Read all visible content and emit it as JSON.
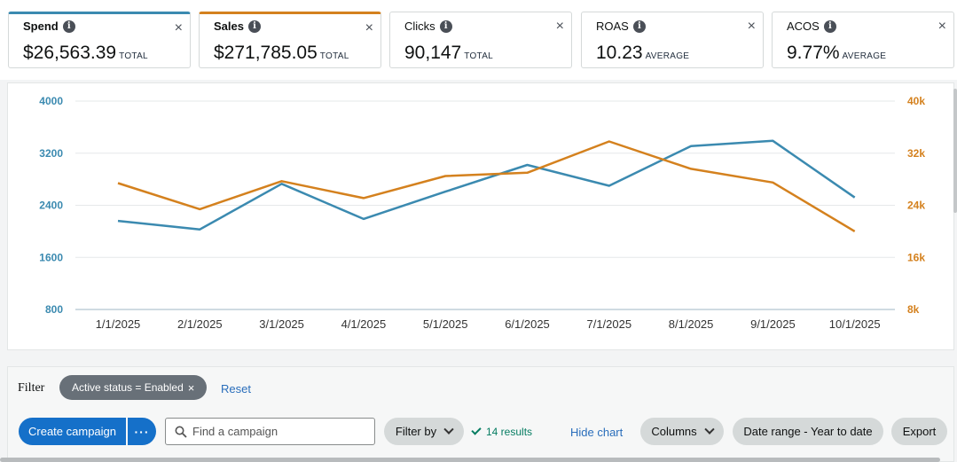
{
  "metrics": [
    {
      "label": "Spend",
      "value": "$26,563.39",
      "suffix": "TOTAL",
      "selected": true
    },
    {
      "label": "Sales",
      "value": "$271,785.05",
      "suffix": "TOTAL",
      "selected": true
    },
    {
      "label": "Clicks",
      "value": "90,147",
      "suffix": "TOTAL",
      "selected": false
    },
    {
      "label": "ROAS",
      "value": "10.23",
      "suffix": "AVERAGE",
      "selected": false
    },
    {
      "label": "ACOS",
      "value": "9.77%",
      "suffix": "AVERAGE",
      "selected": false
    }
  ],
  "icons": {
    "info": "i",
    "close": "×"
  },
  "colors": {
    "spend": "#3b8ab0",
    "sales": "#d4811e",
    "primary": "#1570c9"
  },
  "chart_data": {
    "type": "line",
    "x": [
      "1/1/2025",
      "2/1/2025",
      "3/1/2025",
      "4/1/2025",
      "5/1/2025",
      "6/1/2025",
      "7/1/2025",
      "8/1/2025",
      "9/1/2025",
      "10/1/2025"
    ],
    "series": [
      {
        "name": "Spend",
        "axis": "left",
        "color": "#3b8ab0",
        "values": [
          2160,
          2030,
          2730,
          2190,
          2610,
          3020,
          2700,
          3310,
          3390,
          2520
        ]
      },
      {
        "name": "Sales",
        "axis": "right",
        "color": "#d4811e",
        "values": [
          27400,
          23400,
          27700,
          25100,
          28500,
          29000,
          33800,
          29600,
          27500,
          20000
        ]
      }
    ],
    "y_left": {
      "ticks": [
        "4000",
        "3200",
        "2400",
        "1600",
        "800"
      ],
      "range": [
        800,
        4000
      ]
    },
    "y_right": {
      "ticks": [
        "40k",
        "32k",
        "24k",
        "16k",
        "8k"
      ],
      "range": [
        8000,
        40000
      ]
    },
    "grid": true
  },
  "filter": {
    "label": "Filter",
    "chip": "Active status = Enabled",
    "reset": "Reset"
  },
  "toolbar": {
    "create": "Create campaign",
    "more": "···",
    "search_placeholder": "Find a campaign",
    "filter_by": "Filter by",
    "results": "14 results",
    "hide_chart": "Hide chart",
    "columns": "Columns",
    "date_range": "Date range - Year to date",
    "export": "Export"
  }
}
